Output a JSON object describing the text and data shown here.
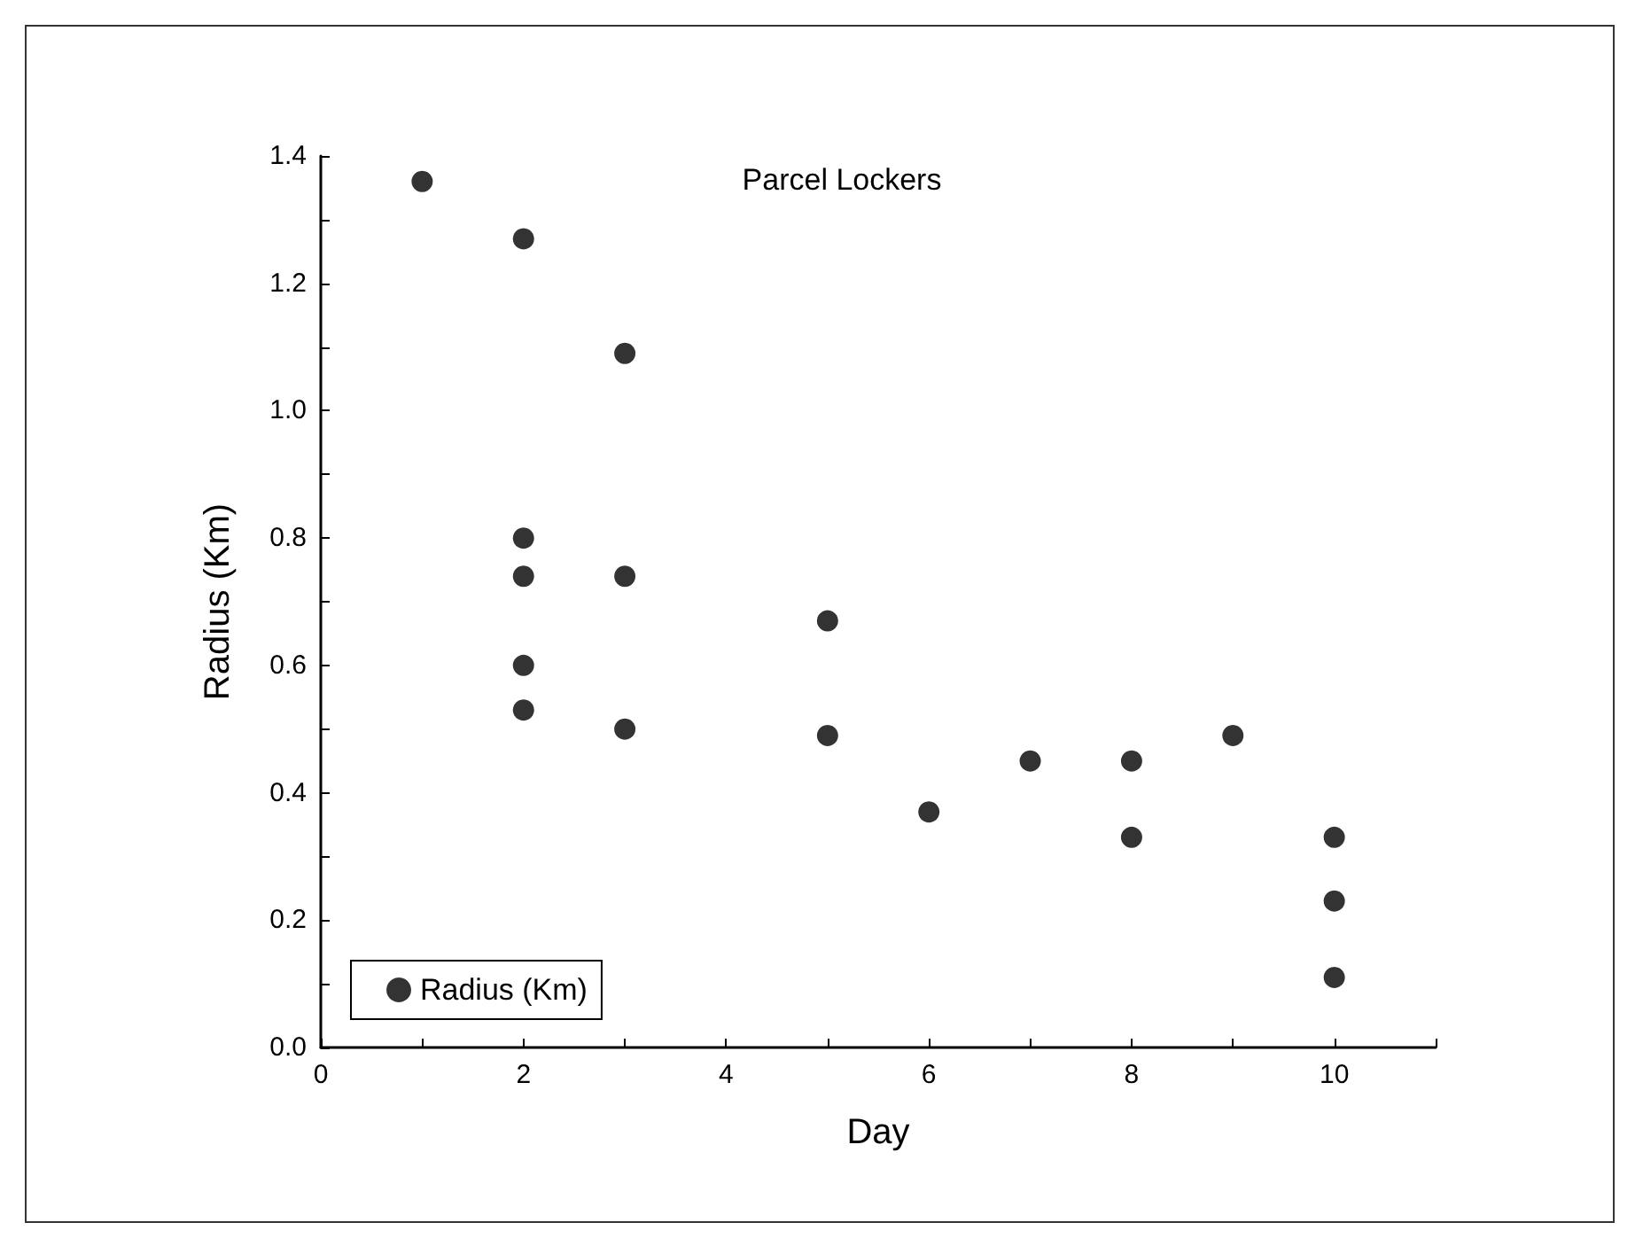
{
  "chart_data": {
    "type": "scatter",
    "title": "Parcel Lockers",
    "xlabel": "Day",
    "ylabel": "Radius (Km)",
    "x": [
      1,
      2,
      2,
      2,
      2,
      2,
      3,
      3,
      3,
      5,
      5,
      6,
      7,
      8,
      8,
      9,
      10,
      10,
      10
    ],
    "series": [
      {
        "name": "Radius (Km)",
        "color": "#000000",
        "values": [
          1.36,
          1.27,
          0.8,
          0.74,
          0.6,
          0.53,
          1.09,
          0.74,
          0.5,
          0.67,
          0.49,
          0.37,
          0.45,
          0.45,
          0.33,
          0.49,
          0.33,
          0.23,
          0.11
        ]
      }
    ],
    "xlim": [
      0,
      11
    ],
    "xticks": [
      0,
      {
        "value": 1,
        "label": null
      },
      2,
      {
        "value": 3,
        "label": null
      },
      4,
      {
        "value": 5,
        "label": null
      },
      6,
      {
        "value": 7,
        "label": null
      },
      8,
      {
        "value": 9,
        "label": null
      },
      10,
      {
        "value": 11,
        "label": null
      }
    ],
    "ylim": [
      0,
      1.4
    ],
    "yticks": [
      {
        "value": 0,
        "label": "0.0"
      },
      {
        "value": 0.1,
        "label": null
      },
      0.2,
      {
        "value": 0.3,
        "label": null
      },
      0.4,
      {
        "value": 0.5,
        "label": null
      },
      0.6,
      {
        "value": 0.7,
        "label": null
      },
      0.8,
      {
        "value": 0.9,
        "label": null
      },
      {
        "value": 1,
        "label": "1.0"
      },
      {
        "value": 1.1,
        "label": null
      },
      1.2,
      {
        "value": 1.3,
        "label": null
      },
      1.4
    ],
    "marker": "circle",
    "legend": "bottom left",
    "grid": false
  }
}
